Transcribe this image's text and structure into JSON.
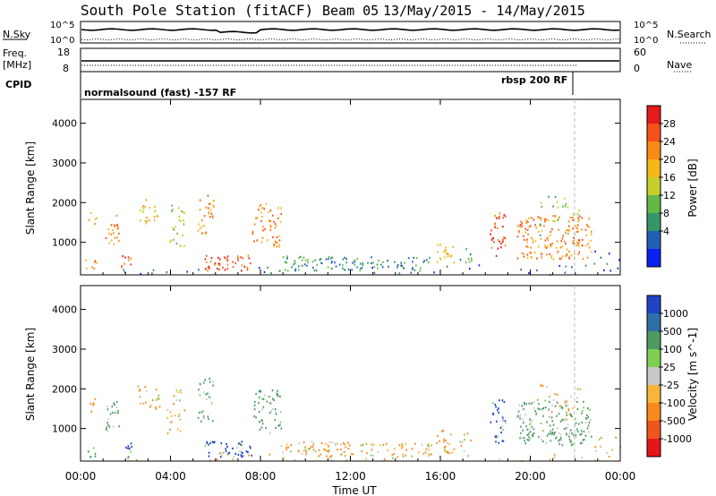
{
  "header": {
    "station": "South Pole Station (fitACF)",
    "beam": "Beam 05",
    "date_range": "13/May/2015 - 14/May/2015"
  },
  "summary": {
    "nsky_label": "N.Sky",
    "nsearch_label": "N.Search",
    "freq_label_1": "Freq.",
    "freq_label_2": "[MHz]",
    "nave_label": "Nave",
    "cpid_label": "CPID",
    "nsky_ticks": [
      "10^5",
      "10^0"
    ],
    "nsearch_ticks": [
      "10^5",
      "10^0"
    ],
    "freq_ticks": [
      "18",
      "8"
    ],
    "nave_ticks": [
      "60",
      "0"
    ],
    "cpid_entries": [
      {
        "text": "normalsound (fast) -157 RF",
        "start_hour": 0.0
      },
      {
        "text": "rbsp 200 RF",
        "start_hour": 21.9
      }
    ]
  },
  "chart_data": [
    {
      "type": "heatmap",
      "parameter": "Power",
      "ylabel": "Slant Range [km]",
      "xlabel": "Time UT",
      "x_ticks": [
        "00:00",
        "04:00",
        "08:00",
        "12:00",
        "16:00",
        "20:00",
        "00:00"
      ],
      "x_range_hours": [
        0,
        24
      ],
      "y_ticks": [
        "1000",
        "2000",
        "3000",
        "4000"
      ],
      "y_range_km": [
        180,
        4600
      ],
      "colorbar": {
        "label": "Power [dB]",
        "ticks": [
          "28",
          "24",
          "20",
          "16",
          "12",
          "8",
          "4"
        ],
        "colors": [
          "#e41a1c",
          "#f5501a",
          "#f98a14",
          "#f6b816",
          "#c6cf2b",
          "#63b848",
          "#36966b",
          "#1f60b4",
          "#0a20f0"
        ]
      }
    },
    {
      "type": "heatmap",
      "parameter": "Velocity",
      "ylabel": "Slant Range [km]",
      "xlabel": "Time UT",
      "x_ticks": [
        "00:00",
        "04:00",
        "08:00",
        "12:00",
        "16:00",
        "20:00",
        "00:00"
      ],
      "x_range_hours": [
        0,
        24
      ],
      "y_ticks": [
        "1000",
        "2000",
        "3000",
        "4000"
      ],
      "y_range_km": [
        180,
        4600
      ],
      "colorbar": {
        "label": "Velocity [m s^-1]",
        "ticks": [
          "1000",
          "500",
          "100",
          "25",
          "-25",
          "-100",
          "-500",
          "-1000"
        ],
        "colors": [
          "#1f43c4",
          "#2f6fa8",
          "#4e9a63",
          "#7fcf53",
          "#c8c8c8",
          "#f7b53a",
          "#f88a1c",
          "#f2541e",
          "#e4161b"
        ]
      }
    }
  ],
  "time_axis": {
    "title": "Time UT",
    "ticks": [
      "00:00",
      "04:00",
      "08:00",
      "12:00",
      "16:00",
      "20:00",
      "00:00"
    ]
  }
}
